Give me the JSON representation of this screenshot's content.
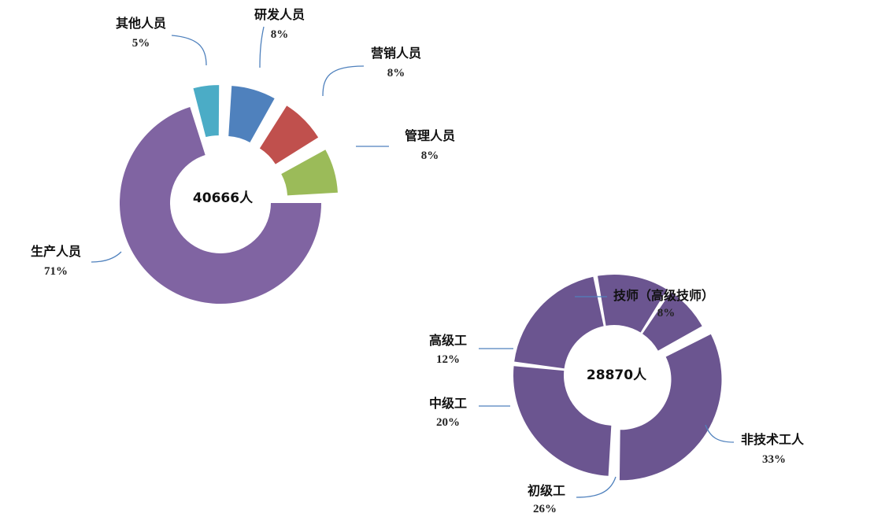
{
  "chart_data": [
    {
      "type": "donut",
      "center_label": "40666人",
      "series": [
        {
          "label": "研发人员",
          "value": 8,
          "percent_label": "8%",
          "color": "#4F81BD"
        },
        {
          "label": "营销人员",
          "value": 8,
          "percent_label": "8%",
          "color": "#C0504D"
        },
        {
          "label": "管理人员",
          "value": 8,
          "percent_label": "8%",
          "color": "#9BBB59"
        },
        {
          "label": "生产人员",
          "value": 71,
          "percent_label": "71%",
          "color": "#8064A2"
        },
        {
          "label": "其他人员",
          "value": 5,
          "percent_label": "5%",
          "color": "#4BACC6"
        }
      ]
    },
    {
      "type": "donut",
      "center_label": "28870人",
      "series": [
        {
          "label": "非技术工人",
          "value": 33,
          "percent_label": "33%",
          "color": "#6B5590"
        },
        {
          "label": "初级工",
          "value": 26,
          "percent_label": "26%",
          "color": "#6B5590"
        },
        {
          "label": "中级工",
          "value": 20,
          "percent_label": "20%",
          "color": "#6B5590"
        },
        {
          "label": "高级工",
          "value": 12,
          "percent_label": "12%",
          "color": "#6B5590"
        },
        {
          "label": "技师（高级技师）",
          "value": 8,
          "percent_label": "8%",
          "color": "#6B5590"
        }
      ]
    }
  ],
  "leader_color": "#4F81BD"
}
